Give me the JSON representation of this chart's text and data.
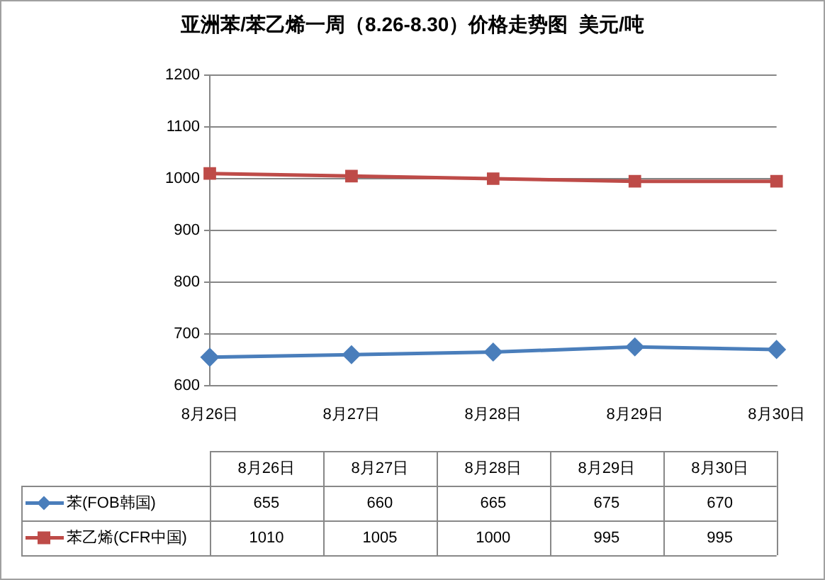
{
  "chart_data": {
    "type": "line",
    "title": "亚洲苯/苯乙烯一周（8.26-8.30）价格走势图  美元/吨",
    "categories": [
      "8月26日",
      "8月27日",
      "8月28日",
      "8月29日",
      "8月30日"
    ],
    "series": [
      {
        "name": "苯(FOB韩国)",
        "color": "#4a7ebb",
        "marker": "diamond",
        "values": [
          655,
          660,
          665,
          675,
          670
        ]
      },
      {
        "name": "苯乙烯(CFR中国)",
        "color": "#be4b48",
        "marker": "square",
        "values": [
          1010,
          1005,
          1000,
          995,
          995
        ]
      }
    ],
    "ylim": [
      600,
      1200
    ],
    "yticks": [
      600,
      700,
      800,
      900,
      1000,
      1100,
      1200
    ],
    "grid": "y",
    "legend": "bottom",
    "data_labels": true,
    "line_style": "solid"
  }
}
